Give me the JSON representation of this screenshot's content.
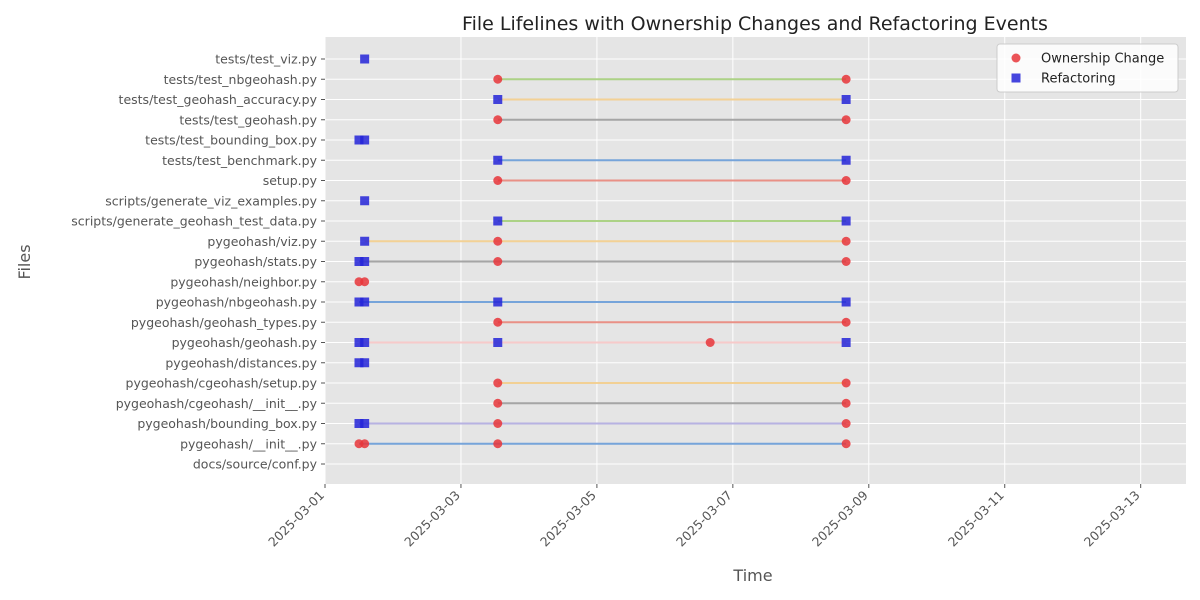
{
  "chart_data": {
    "type": "scatter",
    "title": "File Lifelines with Ownership Changes and Refactoring Events",
    "xlabel": "Time",
    "ylabel": "Files",
    "x_axis_type": "date",
    "xlim": [
      "2025-03-01",
      "2025-03-13T16:00"
    ],
    "x_ticks": [
      "2025-03-01",
      "2025-03-03",
      "2025-03-05",
      "2025-03-07",
      "2025-03-09",
      "2025-03-11",
      "2025-03-13"
    ],
    "grid": true,
    "legend_position": "top-right",
    "files": [
      "docs/source/conf.py",
      "pygeohash/__init__.py",
      "pygeohash/bounding_box.py",
      "pygeohash/cgeohash/__init__.py",
      "pygeohash/cgeohash/setup.py",
      "pygeohash/distances.py",
      "pygeohash/geohash.py",
      "pygeohash/geohash_types.py",
      "pygeohash/nbgeohash.py",
      "pygeohash/neighbor.py",
      "pygeohash/stats.py",
      "pygeohash/viz.py",
      "scripts/generate_geohash_test_data.py",
      "scripts/generate_viz_examples.py",
      "setup.py",
      "tests/test_benchmark.py",
      "tests/test_bounding_box.py",
      "tests/test_geohash.py",
      "tests/test_geohash_accuracy.py",
      "tests/test_nbgeohash.py",
      "tests/test_viz.py"
    ],
    "lifelines": [
      {
        "file": "pygeohash/__init__.py",
        "start": "2025-03-01T12:00",
        "end": "2025-03-08T16:00",
        "color": "#6f9fd8"
      },
      {
        "file": "pygeohash/bounding_box.py",
        "start": "2025-03-01T12:00",
        "end": "2025-03-08T16:00",
        "color": "#b3aee0"
      },
      {
        "file": "pygeohash/cgeohash/__init__.py",
        "start": "2025-03-03T13:00",
        "end": "2025-03-08T16:00",
        "color": "#a0a0a0"
      },
      {
        "file": "pygeohash/cgeohash/setup.py",
        "start": "2025-03-03T13:00",
        "end": "2025-03-08T16:00",
        "color": "#f2cf8f"
      },
      {
        "file": "pygeohash/geohash.py",
        "start": "2025-03-01T12:00",
        "end": "2025-03-08T16:00",
        "color": "#f7c7c7"
      },
      {
        "file": "pygeohash/geohash_types.py",
        "start": "2025-03-03T13:00",
        "end": "2025-03-08T16:00",
        "color": "#e88a80"
      },
      {
        "file": "pygeohash/nbgeohash.py",
        "start": "2025-03-01T12:00",
        "end": "2025-03-08T16:00",
        "color": "#6f9fd8"
      },
      {
        "file": "pygeohash/stats.py",
        "start": "2025-03-01T12:00",
        "end": "2025-03-08T16:00",
        "color": "#a0a0a0"
      },
      {
        "file": "pygeohash/viz.py",
        "start": "2025-03-01T14:00",
        "end": "2025-03-08T16:00",
        "color": "#f2cf8f"
      },
      {
        "file": "scripts/generate_geohash_test_data.py",
        "start": "2025-03-03T13:00",
        "end": "2025-03-08T16:00",
        "color": "#a8d080"
      },
      {
        "file": "setup.py",
        "start": "2025-03-03T13:00",
        "end": "2025-03-08T16:00",
        "color": "#e88a80"
      },
      {
        "file": "tests/test_benchmark.py",
        "start": "2025-03-03T13:00",
        "end": "2025-03-08T16:00",
        "color": "#6f9fd8"
      },
      {
        "file": "tests/test_geohash.py",
        "start": "2025-03-03T13:00",
        "end": "2025-03-08T16:00",
        "color": "#a0a0a0"
      },
      {
        "file": "tests/test_geohash_accuracy.py",
        "start": "2025-03-03T13:00",
        "end": "2025-03-08T16:00",
        "color": "#f2cf8f"
      },
      {
        "file": "tests/test_nbgeohash.py",
        "start": "2025-03-03T13:00",
        "end": "2025-03-08T16:00",
        "color": "#a8d080"
      }
    ],
    "series": [
      {
        "name": "Ownership Change",
        "marker": "circle",
        "color": "#e8353a",
        "points": [
          {
            "file": "pygeohash/__init__.py",
            "x": "2025-03-01T12:00"
          },
          {
            "file": "pygeohash/__init__.py",
            "x": "2025-03-01T14:00"
          },
          {
            "file": "pygeohash/__init__.py",
            "x": "2025-03-03T13:00"
          },
          {
            "file": "pygeohash/__init__.py",
            "x": "2025-03-08T16:00"
          },
          {
            "file": "pygeohash/bounding_box.py",
            "x": "2025-03-03T13:00"
          },
          {
            "file": "pygeohash/bounding_box.py",
            "x": "2025-03-08T16:00"
          },
          {
            "file": "pygeohash/cgeohash/__init__.py",
            "x": "2025-03-03T13:00"
          },
          {
            "file": "pygeohash/cgeohash/__init__.py",
            "x": "2025-03-08T16:00"
          },
          {
            "file": "pygeohash/cgeohash/setup.py",
            "x": "2025-03-03T13:00"
          },
          {
            "file": "pygeohash/cgeohash/setup.py",
            "x": "2025-03-08T16:00"
          },
          {
            "file": "pygeohash/geohash.py",
            "x": "2025-03-06T16:00"
          },
          {
            "file": "pygeohash/geohash_types.py",
            "x": "2025-03-03T13:00"
          },
          {
            "file": "pygeohash/geohash_types.py",
            "x": "2025-03-08T16:00"
          },
          {
            "file": "pygeohash/neighbor.py",
            "x": "2025-03-01T12:00"
          },
          {
            "file": "pygeohash/neighbor.py",
            "x": "2025-03-01T14:00"
          },
          {
            "file": "pygeohash/stats.py",
            "x": "2025-03-03T13:00"
          },
          {
            "file": "pygeohash/stats.py",
            "x": "2025-03-08T16:00"
          },
          {
            "file": "pygeohash/viz.py",
            "x": "2025-03-03T13:00"
          },
          {
            "file": "pygeohash/viz.py",
            "x": "2025-03-08T16:00"
          },
          {
            "file": "setup.py",
            "x": "2025-03-03T13:00"
          },
          {
            "file": "setup.py",
            "x": "2025-03-08T16:00"
          },
          {
            "file": "tests/test_geohash.py",
            "x": "2025-03-03T13:00"
          },
          {
            "file": "tests/test_geohash.py",
            "x": "2025-03-08T16:00"
          },
          {
            "file": "tests/test_nbgeohash.py",
            "x": "2025-03-03T13:00"
          },
          {
            "file": "tests/test_nbgeohash.py",
            "x": "2025-03-08T16:00"
          }
        ]
      },
      {
        "name": "Refactoring",
        "marker": "square",
        "color": "#2424d8",
        "points": [
          {
            "file": "pygeohash/bounding_box.py",
            "x": "2025-03-01T12:00"
          },
          {
            "file": "pygeohash/bounding_box.py",
            "x": "2025-03-01T14:00"
          },
          {
            "file": "pygeohash/distances.py",
            "x": "2025-03-01T12:00"
          },
          {
            "file": "pygeohash/distances.py",
            "x": "2025-03-01T14:00"
          },
          {
            "file": "pygeohash/geohash.py",
            "x": "2025-03-01T12:00"
          },
          {
            "file": "pygeohash/geohash.py",
            "x": "2025-03-01T14:00"
          },
          {
            "file": "pygeohash/geohash.py",
            "x": "2025-03-03T13:00"
          },
          {
            "file": "pygeohash/geohash.py",
            "x": "2025-03-08T16:00"
          },
          {
            "file": "pygeohash/nbgeohash.py",
            "x": "2025-03-01T12:00"
          },
          {
            "file": "pygeohash/nbgeohash.py",
            "x": "2025-03-01T14:00"
          },
          {
            "file": "pygeohash/nbgeohash.py",
            "x": "2025-03-03T13:00"
          },
          {
            "file": "pygeohash/nbgeohash.py",
            "x": "2025-03-08T16:00"
          },
          {
            "file": "pygeohash/stats.py",
            "x": "2025-03-01T12:00"
          },
          {
            "file": "pygeohash/stats.py",
            "x": "2025-03-01T14:00"
          },
          {
            "file": "pygeohash/viz.py",
            "x": "2025-03-01T14:00"
          },
          {
            "file": "scripts/generate_geohash_test_data.py",
            "x": "2025-03-03T13:00"
          },
          {
            "file": "scripts/generate_geohash_test_data.py",
            "x": "2025-03-08T16:00"
          },
          {
            "file": "scripts/generate_viz_examples.py",
            "x": "2025-03-01T14:00"
          },
          {
            "file": "tests/test_benchmark.py",
            "x": "2025-03-03T13:00"
          },
          {
            "file": "tests/test_benchmark.py",
            "x": "2025-03-08T16:00"
          },
          {
            "file": "tests/test_bounding_box.py",
            "x": "2025-03-01T12:00"
          },
          {
            "file": "tests/test_bounding_box.py",
            "x": "2025-03-01T14:00"
          },
          {
            "file": "tests/test_geohash_accuracy.py",
            "x": "2025-03-03T13:00"
          },
          {
            "file": "tests/test_geohash_accuracy.py",
            "x": "2025-03-08T16:00"
          },
          {
            "file": "tests/test_viz.py",
            "x": "2025-03-01T14:00"
          }
        ]
      }
    ]
  }
}
